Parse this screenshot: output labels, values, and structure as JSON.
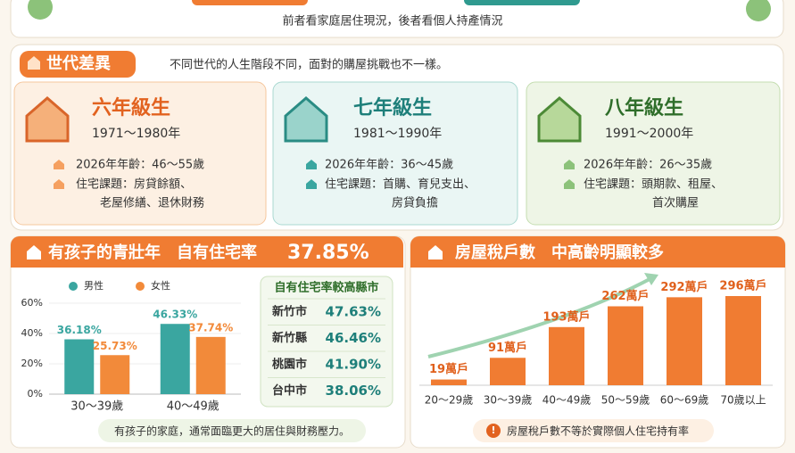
{
  "top": {
    "caption": "前者看家庭居住現況，後者看個人持產情況"
  },
  "generations": {
    "title": "世代差異",
    "subtitle": "不同世代的人生階段不同，面對的購屋挑戰也不一樣。",
    "cards": [
      {
        "name": "六年級生",
        "years": "1971～1980年",
        "age": "2026年年齡：46～55歲",
        "issue": [
          "住宅課題：房貸餘額、",
          "老屋修繕、退休財務"
        ]
      },
      {
        "name": "七年級生",
        "years": "1981～1990年",
        "age": "2026年年齡：36～45歲",
        "issue": [
          "住宅課題：首購、育兒支出、",
          "房貸負擔"
        ]
      },
      {
        "name": "八年級生",
        "years": "1991～2000年",
        "age": "2026年年齡：26～35歲",
        "issue": [
          "住宅課題：頭期款、租屋、",
          "首次購屋"
        ]
      }
    ]
  },
  "left_panel": {
    "title": "有孩子的青壯年　自有住宅率",
    "highlight": "37.85%",
    "note": "有孩子的家庭，通常面臨更大的居住與財務壓力。",
    "table": {
      "title": "自有住宅率較高縣市",
      "rows": [
        [
          "新竹市",
          "47.63%"
        ],
        [
          "新竹縣",
          "46.46%"
        ],
        [
          "桃園市",
          "41.90%"
        ],
        [
          "台中市",
          "38.06%"
        ]
      ]
    }
  },
  "right_panel": {
    "title": "房屋稅戶數　中高齡明顯較多",
    "note": "房屋稅戶數不等於實際個人住宅持有率"
  },
  "chart_data": [
    {
      "type": "bar",
      "categories": [
        "30～39歲",
        "40～49歲"
      ],
      "series": [
        {
          "name": "男性",
          "color": "#3aa6a0",
          "values": [
            36.18,
            46.33
          ],
          "value_labels": [
            "36.18%",
            "46.33%"
          ]
        },
        {
          "name": "女性",
          "color": "#f28a3a",
          "values": [
            25.73,
            37.74
          ],
          "value_labels": [
            "25.73%",
            "37.74%"
          ]
        }
      ],
      "ylim": [
        0,
        60
      ],
      "yticks": [
        {
          "value": 0,
          "label": "0%"
        },
        {
          "value": 20,
          "label": "20%"
        },
        {
          "value": 40,
          "label": "40%"
        },
        {
          "value": 60,
          "label": "60%"
        }
      ]
    },
    {
      "type": "bar",
      "categories": [
        "20～29歲",
        "30～39歲",
        "40～49歲",
        "50～59歲",
        "60～69歲",
        "70歲以上"
      ],
      "values": [
        19,
        91,
        193,
        262,
        292,
        296
      ],
      "value_labels": [
        "19萬戶",
        "91萬戶",
        "193萬戶",
        "262萬戶",
        "292萬戶",
        "296萬戶"
      ],
      "color": "#f07c32"
    }
  ]
}
